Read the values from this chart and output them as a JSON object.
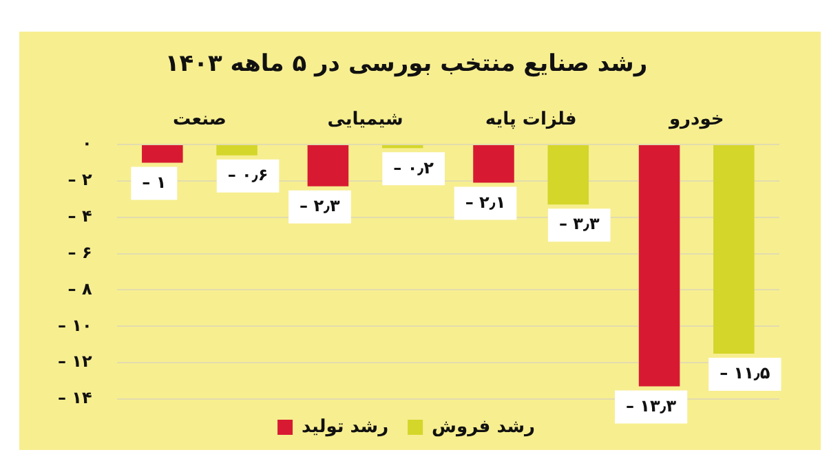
{
  "chart_data": {
    "type": "bar",
    "title": "رشد صنایع منتخب بورسی در ۵ ماهه ۱۴۰۳",
    "categories": [
      "صنعت",
      "شیمیایی",
      "فلزات پایه",
      "خودرو"
    ],
    "series": [
      {
        "name": "رشد تولید",
        "color": "#d71a32",
        "values": [
          -1,
          -2.3,
          -2.1,
          -13.3
        ],
        "value_labels": [
          "– ۱",
          "– ۲٫۳",
          "– ۲٫۱",
          "– ۱۳٫۳"
        ]
      },
      {
        "name": "رشد فروش",
        "color": "#d4d62a",
        "values": [
          -0.6,
          -0.2,
          -3.3,
          -11.5
        ],
        "value_labels": [
          "– ۰٫۶",
          "– ۰٫۲",
          "– ۳٫۳",
          "– ۱۱٫۵"
        ]
      }
    ],
    "ylim": [
      -14,
      0
    ],
    "yticks": [
      {
        "value": 0,
        "label": "۰"
      },
      {
        "value": -2,
        "label": "– ۲"
      },
      {
        "value": -4,
        "label": "– ۴"
      },
      {
        "value": -6,
        "label": "– ۶"
      },
      {
        "value": -8,
        "label": "– ۸"
      },
      {
        "value": -10,
        "label": "– ۱۰"
      },
      {
        "value": -12,
        "label": "– ۱۲"
      },
      {
        "value": -14,
        "label": "– ۱۴"
      }
    ],
    "grid": "y",
    "legend": "bottom"
  }
}
